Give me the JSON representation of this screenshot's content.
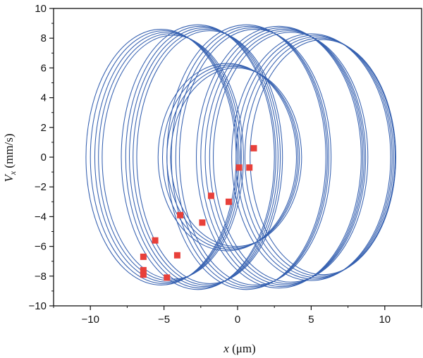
{
  "chart_data": {
    "type": "scatter",
    "title": "",
    "xlabel": {
      "var": "x",
      "unit": " (μm)"
    },
    "ylabel": {
      "var": "V",
      "sub": "x",
      "unit": " (mm/s)"
    },
    "xlim": [
      -12.5,
      12.5
    ],
    "ylim": [
      -10,
      10
    ],
    "xticks": [
      -10,
      -5,
      0,
      5,
      10
    ],
    "xtick_labels": [
      "−10",
      "−5",
      "0",
      "5",
      "10"
    ],
    "yticks": [
      -10,
      -8,
      -6,
      -4,
      -2,
      0,
      2,
      4,
      6,
      8,
      10
    ],
    "ytick_labels": [
      "−10",
      "−8",
      "−6",
      "−4",
      "−2",
      "0",
      "2",
      "4",
      "6",
      "8",
      "10"
    ],
    "grid": false,
    "colors": {
      "orbit": "#3560b0",
      "poincare": "#e8403a"
    },
    "series": [
      {
        "kind": "line",
        "description": "phase-space orbit: ellipses x = xc + a·cos t, Vx = b·sin t",
        "ellipses": [
          {
            "xc": -5.2,
            "a": 5.1,
            "b": 8.6
          },
          {
            "xc": -5.0,
            "a": 5.0,
            "b": 8.5
          },
          {
            "xc": -4.8,
            "a": 4.9,
            "b": 8.4
          },
          {
            "xc": -4.6,
            "a": 4.85,
            "b": 8.3
          },
          {
            "xc": -4.4,
            "a": 4.8,
            "b": 8.2
          },
          {
            "xc": -2.7,
            "a": 5.2,
            "b": 8.9
          },
          {
            "xc": -2.5,
            "a": 5.1,
            "b": 8.8
          },
          {
            "xc": -2.3,
            "a": 5.05,
            "b": 8.7
          },
          {
            "xc": -2.1,
            "a": 5.0,
            "b": 8.6
          },
          {
            "xc": -1.9,
            "a": 4.95,
            "b": 8.5
          },
          {
            "xc": -0.7,
            "a": 4.7,
            "b": 6.3
          },
          {
            "xc": -0.5,
            "a": 4.6,
            "b": 6.2
          },
          {
            "xc": -0.3,
            "a": 4.5,
            "b": 6.1
          },
          {
            "xc": -0.1,
            "a": 4.45,
            "b": 6.0
          },
          {
            "xc": 0.6,
            "a": 5.4,
            "b": 8.9
          },
          {
            "xc": 0.8,
            "a": 5.3,
            "b": 8.8
          },
          {
            "xc": 1.0,
            "a": 5.2,
            "b": 8.7
          },
          {
            "xc": 1.2,
            "a": 5.15,
            "b": 8.6
          },
          {
            "xc": 2.8,
            "a": 5.6,
            "b": 8.8
          },
          {
            "xc": 3.0,
            "a": 5.5,
            "b": 8.7
          },
          {
            "xc": 3.2,
            "a": 5.4,
            "b": 8.6
          },
          {
            "xc": 3.4,
            "a": 5.3,
            "b": 8.5
          },
          {
            "xc": 3.6,
            "a": 5.25,
            "b": 8.4
          },
          {
            "xc": 5.0,
            "a": 5.4,
            "b": 8.3
          },
          {
            "xc": 5.2,
            "a": 5.3,
            "b": 8.2
          },
          {
            "xc": 5.4,
            "a": 5.2,
            "b": 8.1
          },
          {
            "xc": 5.6,
            "a": 5.1,
            "b": 8.0
          },
          {
            "xc": 5.8,
            "a": 4.95,
            "b": 7.9
          }
        ]
      },
      {
        "kind": "markers",
        "marker": "square",
        "points": [
          {
            "x": 1.1,
            "y": 0.6
          },
          {
            "x": 0.1,
            "y": -0.7
          },
          {
            "x": 0.8,
            "y": -0.7
          },
          {
            "x": -1.8,
            "y": -2.6
          },
          {
            "x": -0.6,
            "y": -3.0
          },
          {
            "x": -3.9,
            "y": -3.9
          },
          {
            "x": -2.4,
            "y": -4.4
          },
          {
            "x": -5.6,
            "y": -5.6
          },
          {
            "x": -4.1,
            "y": -6.6
          },
          {
            "x": -6.4,
            "y": -6.7
          },
          {
            "x": -6.4,
            "y": -7.6
          },
          {
            "x": -6.4,
            "y": -7.9
          },
          {
            "x": -4.8,
            "y": -8.1
          }
        ]
      }
    ]
  }
}
